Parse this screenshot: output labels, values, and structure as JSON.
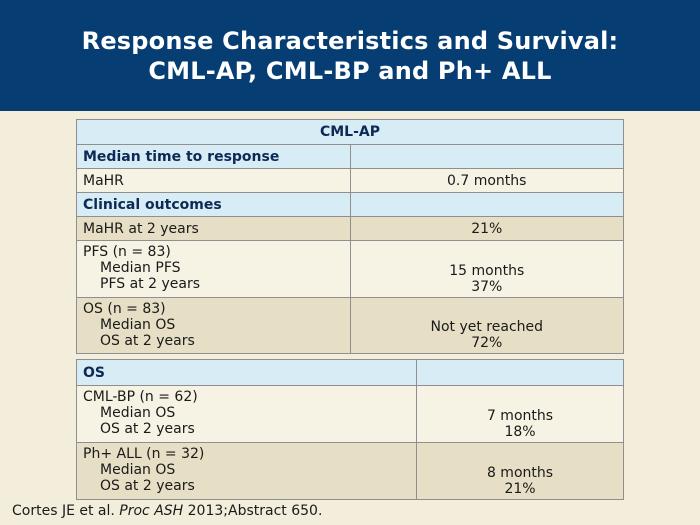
{
  "header": {
    "title_line1": "Response Characteristics and Survival:",
    "title_line2": "CML-AP, CML-BP and Ph+ ALL"
  },
  "table1": {
    "heading": "CML-AP",
    "section1": "Median time to response",
    "mahr_label": "MaHR",
    "mahr_value": "0.7 months",
    "section2": "Clinical outcomes",
    "mahr2_label": "MaHR at 2 years",
    "mahr2_value": "21%",
    "pfs": {
      "label": "PFS (n = 83)",
      "sub1": "Median PFS",
      "sub2": "PFS at 2 years",
      "val1": "15 months",
      "val2": "37%"
    },
    "os": {
      "label": "OS (n = 83)",
      "sub1": "Median OS",
      "sub2": "OS at 2 years",
      "val1": "Not yet reached",
      "val2": "72%"
    }
  },
  "table2": {
    "heading": "OS",
    "bp": {
      "label": "CML-BP (n = 62)",
      "sub1": "Median OS",
      "sub2": "OS at 2 years",
      "val1": "7 months",
      "val2": "18%"
    },
    "all": {
      "label": "Ph+ ALL (n = 32)",
      "sub1": "Median OS",
      "sub2": "OS at 2 years",
      "val1": "8 months",
      "val2": "21%"
    }
  },
  "citation": {
    "authors": "Cortes JE et al. ",
    "journal": "Proc ASH",
    "ref": " 2013;Abstract 650."
  }
}
